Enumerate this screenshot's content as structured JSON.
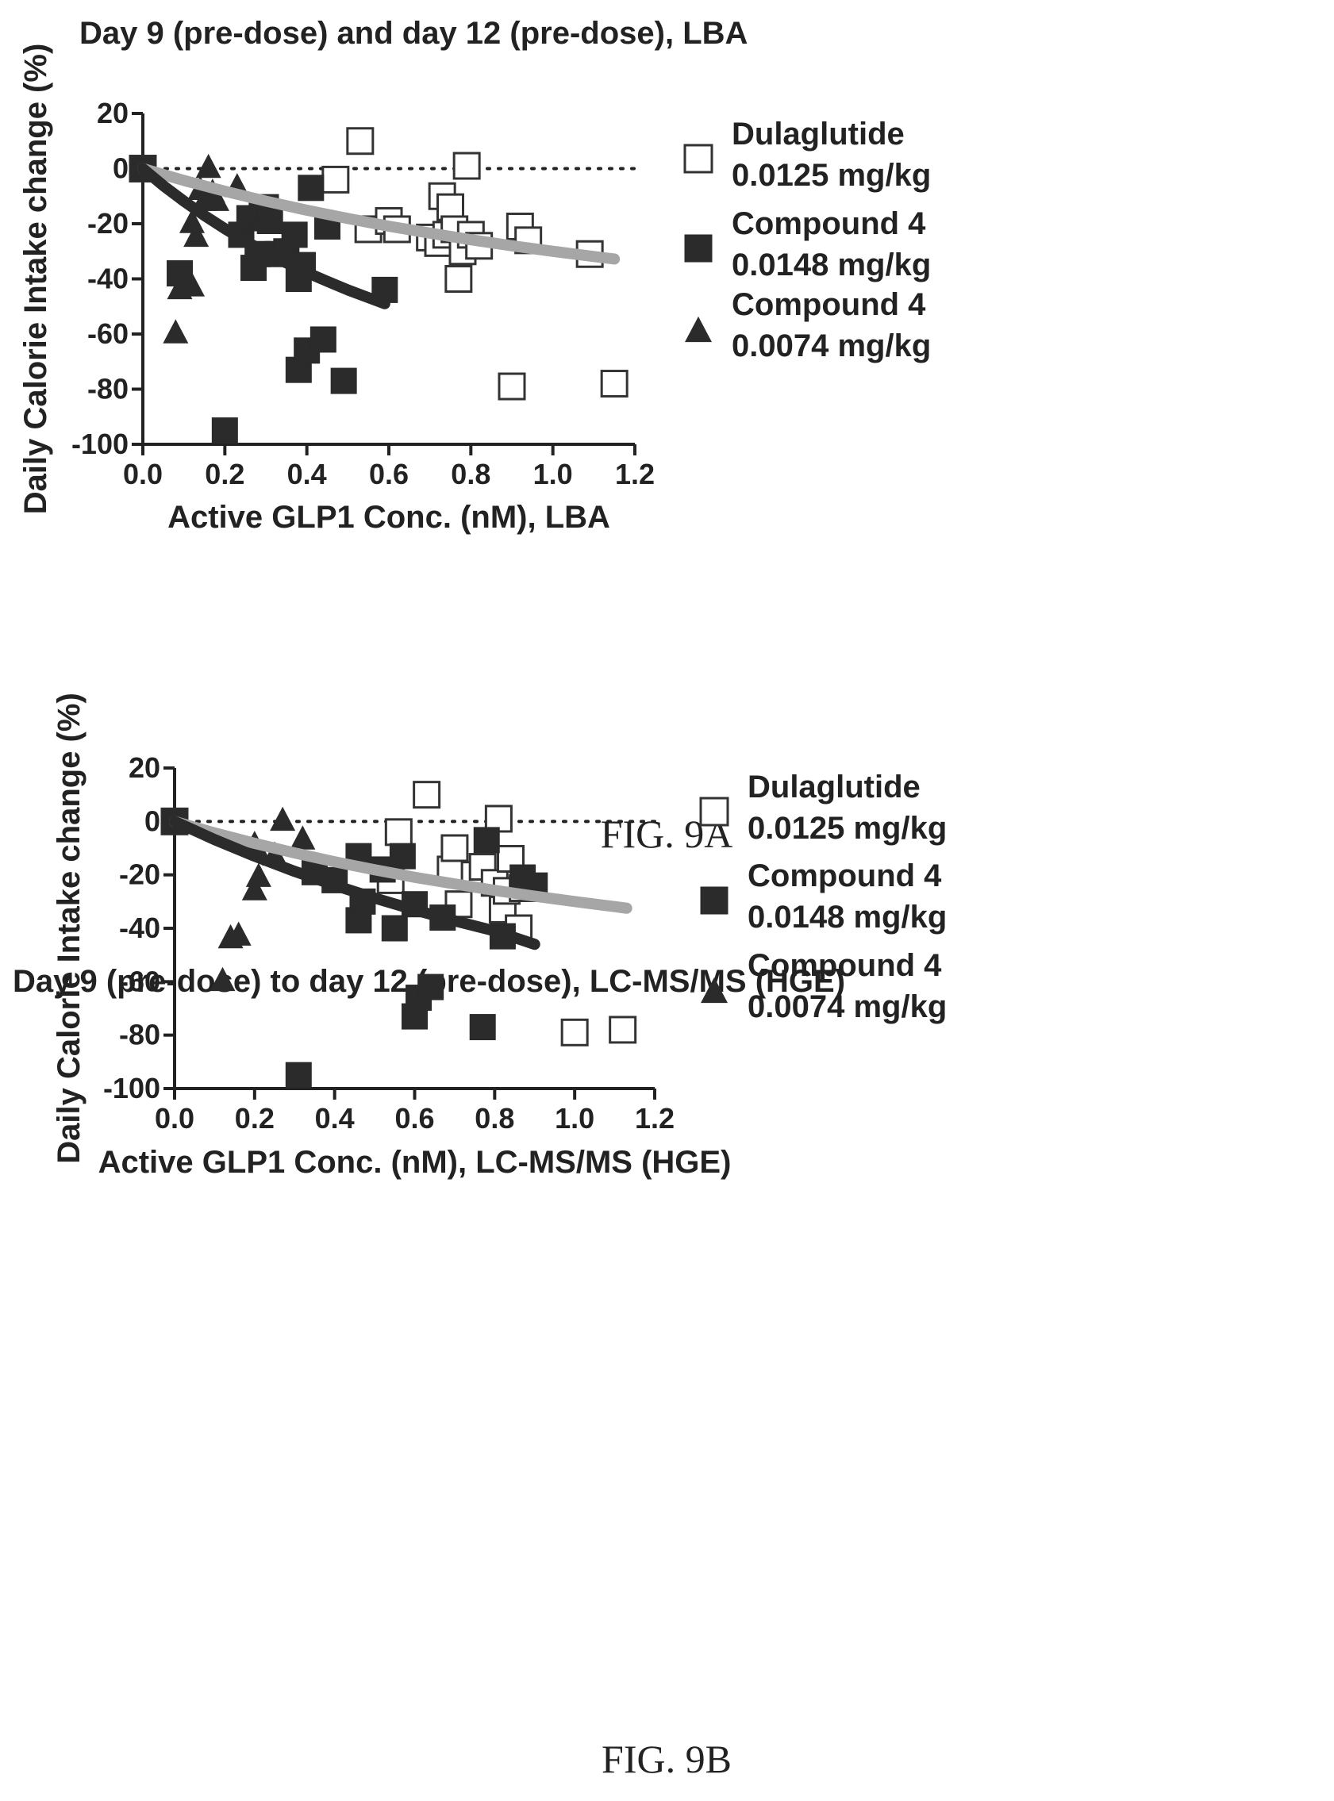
{
  "charts": [
    {
      "title": "Day 9 (pre-dose) and day 12 (pre-dose), LBA",
      "caption": "FIG. 9A",
      "xlabel": "Active GLP1 Conc. (nM), LBA",
      "ylabel": "Daily Calorie Intake change (%)",
      "legend": [
        {
          "line1": "Dulaglutide",
          "line2": "0.0125 mg/kg",
          "marker": "open-square"
        },
        {
          "line1": "Compound 4",
          "line2": "0.0148 mg/kg",
          "marker": "filled-square"
        },
        {
          "line1": "Compound 4",
          "line2": "0.0074 mg/kg",
          "marker": "filled-triangle"
        }
      ]
    },
    {
      "title": "Day 9 (pre-dose) to day 12 (pre-dose), LC-MS/MS (HGE)",
      "caption": "FIG. 9B",
      "xlabel": "Active GLP1 Conc. (nM), LC-MS/MS (HGE)",
      "ylabel": "Daily Calorie Intake change (%)",
      "legend": [
        {
          "line1": "Dulaglutide",
          "line2": "0.0125 mg/kg",
          "marker": "open-square"
        },
        {
          "line1": "Compound 4",
          "line2": "0.0148 mg/kg",
          "marker": "filled-square"
        },
        {
          "line1": "Compound 4",
          "line2": "0.0074 mg/kg",
          "marker": "filled-triangle"
        }
      ]
    }
  ],
  "chart_data": [
    {
      "type": "scatter",
      "title": "Day 9 (pre-dose) and day 12 (pre-dose), LBA",
      "xlabel": "Active GLP1 Conc. (nM), LBA",
      "ylabel": "Daily Calorie Intake change (%)",
      "xlim": [
        0,
        1.2
      ],
      "ylim": [
        -100,
        20
      ],
      "xticks": [
        "0.0",
        "0.2",
        "0.4",
        "0.6",
        "0.8",
        "1.0",
        "1.2"
      ],
      "yticks": [
        "20",
        "0",
        "-20",
        "-40",
        "-60",
        "-80",
        "-100"
      ],
      "reference_line_y": 0,
      "legend_position": "right",
      "series": [
        {
          "name": "Dulaglutide 0.0125 mg/kg",
          "marker": "open-square",
          "x": [
            0.0,
            0.47,
            0.53,
            0.55,
            0.6,
            0.62,
            0.7,
            0.72,
            0.73,
            0.74,
            0.75,
            0.76,
            0.77,
            0.78,
            0.79,
            0.8,
            0.82,
            0.9,
            0.92,
            0.94,
            1.09,
            1.15
          ],
          "y": [
            0,
            -4,
            10,
            -22,
            -19,
            -22,
            -25,
            -27,
            -10,
            -24,
            -14,
            -22,
            -40,
            -30,
            1,
            -24,
            -28,
            -79,
            -21,
            -26,
            -31,
            -78
          ]
        },
        {
          "name": "Compound 4 0.0148 mg/kg",
          "marker": "filled-square",
          "x": [
            0.0,
            0.09,
            0.2,
            0.24,
            0.26,
            0.27,
            0.28,
            0.29,
            0.3,
            0.31,
            0.33,
            0.35,
            0.37,
            0.38,
            0.38,
            0.39,
            0.4,
            0.41,
            0.44,
            0.45,
            0.49,
            0.59
          ],
          "y": [
            0,
            -38,
            -95,
            -24,
            -18,
            -36,
            -31,
            -17,
            -14,
            -19,
            -31,
            -30,
            -24,
            -73,
            -40,
            -35,
            -66,
            -7,
            -62,
            -21,
            -77,
            -44
          ]
        },
        {
          "name": "Compound 4 0.0074 mg/kg",
          "marker": "filled-triangle",
          "x": [
            0.08,
            0.09,
            0.12,
            0.12,
            0.13,
            0.14,
            0.15,
            0.16,
            0.17,
            0.18,
            0.23
          ],
          "y": [
            -59,
            -43,
            -42,
            -19,
            -24,
            -7,
            -11,
            1,
            -8,
            -11,
            -6
          ]
        }
      ],
      "fits": [
        {
          "name": "Dulaglutide fit",
          "color": "#a6a6a6",
          "x": [
            0,
            0.1,
            0.2,
            0.3,
            0.4,
            0.5,
            0.6,
            0.7,
            0.8,
            0.9,
            1.0,
            1.1,
            1.15
          ],
          "y": [
            0,
            -4.3,
            -8.2,
            -11.8,
            -15.1,
            -18.1,
            -20.9,
            -23.4,
            -25.8,
            -28,
            -30,
            -31.9,
            -32.8
          ]
        },
        {
          "name": "Compound 4 fit",
          "color": "#2b2b2b",
          "x": [
            0,
            0.05,
            0.1,
            0.15,
            0.2,
            0.25,
            0.3,
            0.35,
            0.4,
            0.45,
            0.5,
            0.55,
            0.59
          ],
          "y": [
            0,
            -6.2,
            -11.8,
            -17,
            -21.8,
            -26.3,
            -30.4,
            -34.2,
            -37.7,
            -40.9,
            -44,
            -46.8,
            -49
          ]
        }
      ]
    },
    {
      "type": "scatter",
      "title": "Day 9 (pre-dose) to day 12 (pre-dose), LC-MS/MS (HGE)",
      "xlabel": "Active GLP1 Conc. (nM), LC-MS/MS (HGE)",
      "ylabel": "Daily Calorie Intake change (%)",
      "xlim": [
        0,
        1.2
      ],
      "ylim": [
        -100,
        20
      ],
      "xticks": [
        "0.0",
        "0.2",
        "0.4",
        "0.6",
        "0.8",
        "1.0",
        "1.2"
      ],
      "yticks": [
        "20",
        "0",
        "-20",
        "-40",
        "-60",
        "-80",
        "-100"
      ],
      "reference_line_y": 0,
      "legend_position": "right",
      "series": [
        {
          "name": "Dulaglutide 0.0125 mg/kg",
          "marker": "open-square",
          "x": [
            0.0,
            0.54,
            0.56,
            0.63,
            0.69,
            0.7,
            0.71,
            0.75,
            0.77,
            0.8,
            0.81,
            0.82,
            0.83,
            0.84,
            0.86,
            0.87,
            1.0,
            1.12
          ],
          "y": [
            0,
            -22,
            -4,
            10,
            -18,
            -10,
            -31,
            -20,
            -17,
            -23,
            1,
            -33,
            -26,
            -14,
            -40,
            -25,
            -79,
            -78
          ]
        },
        {
          "name": "Compound 4 0.0148 mg/kg",
          "marker": "filled-square",
          "x": [
            0.0,
            0.31,
            0.35,
            0.4,
            0.46,
            0.46,
            0.47,
            0.52,
            0.55,
            0.57,
            0.6,
            0.6,
            0.61,
            0.64,
            0.67,
            0.77,
            0.78,
            0.82,
            0.87,
            0.9
          ],
          "y": [
            0,
            -95,
            -19,
            -22,
            -13,
            -37,
            -30,
            -18,
            -40,
            -13,
            -31,
            -73,
            -66,
            -62,
            -36,
            -77,
            -7,
            -43,
            -21,
            -24
          ]
        },
        {
          "name": "Compound 4 0.0074 mg/kg",
          "marker": "filled-triangle",
          "x": [
            0.12,
            0.14,
            0.16,
            0.2,
            0.2,
            0.21,
            0.25,
            0.27,
            0.32
          ],
          "y": [
            -59,
            -43,
            -42,
            -8,
            -25,
            -20,
            -12,
            1,
            -6
          ]
        }
      ],
      "fits": [
        {
          "name": "Dulaglutide fit",
          "color": "#a6a6a6",
          "x": [
            0,
            0.1,
            0.2,
            0.3,
            0.4,
            0.5,
            0.6,
            0.7,
            0.8,
            0.9,
            1.0,
            1.1,
            1.13
          ],
          "y": [
            0,
            -4.3,
            -8.2,
            -11.8,
            -15.1,
            -18.1,
            -20.9,
            -23.4,
            -25.8,
            -28,
            -30,
            -31.9,
            -32.5
          ]
        },
        {
          "name": "Compound 4 fit",
          "color": "#2b2b2b",
          "x": [
            0,
            0.1,
            0.2,
            0.3,
            0.4,
            0.5,
            0.6,
            0.7,
            0.8,
            0.9
          ],
          "y": [
            0,
            -6.8,
            -13,
            -18.7,
            -23.9,
            -28.7,
            -33.1,
            -37.2,
            -41,
            -46
          ]
        }
      ]
    }
  ]
}
